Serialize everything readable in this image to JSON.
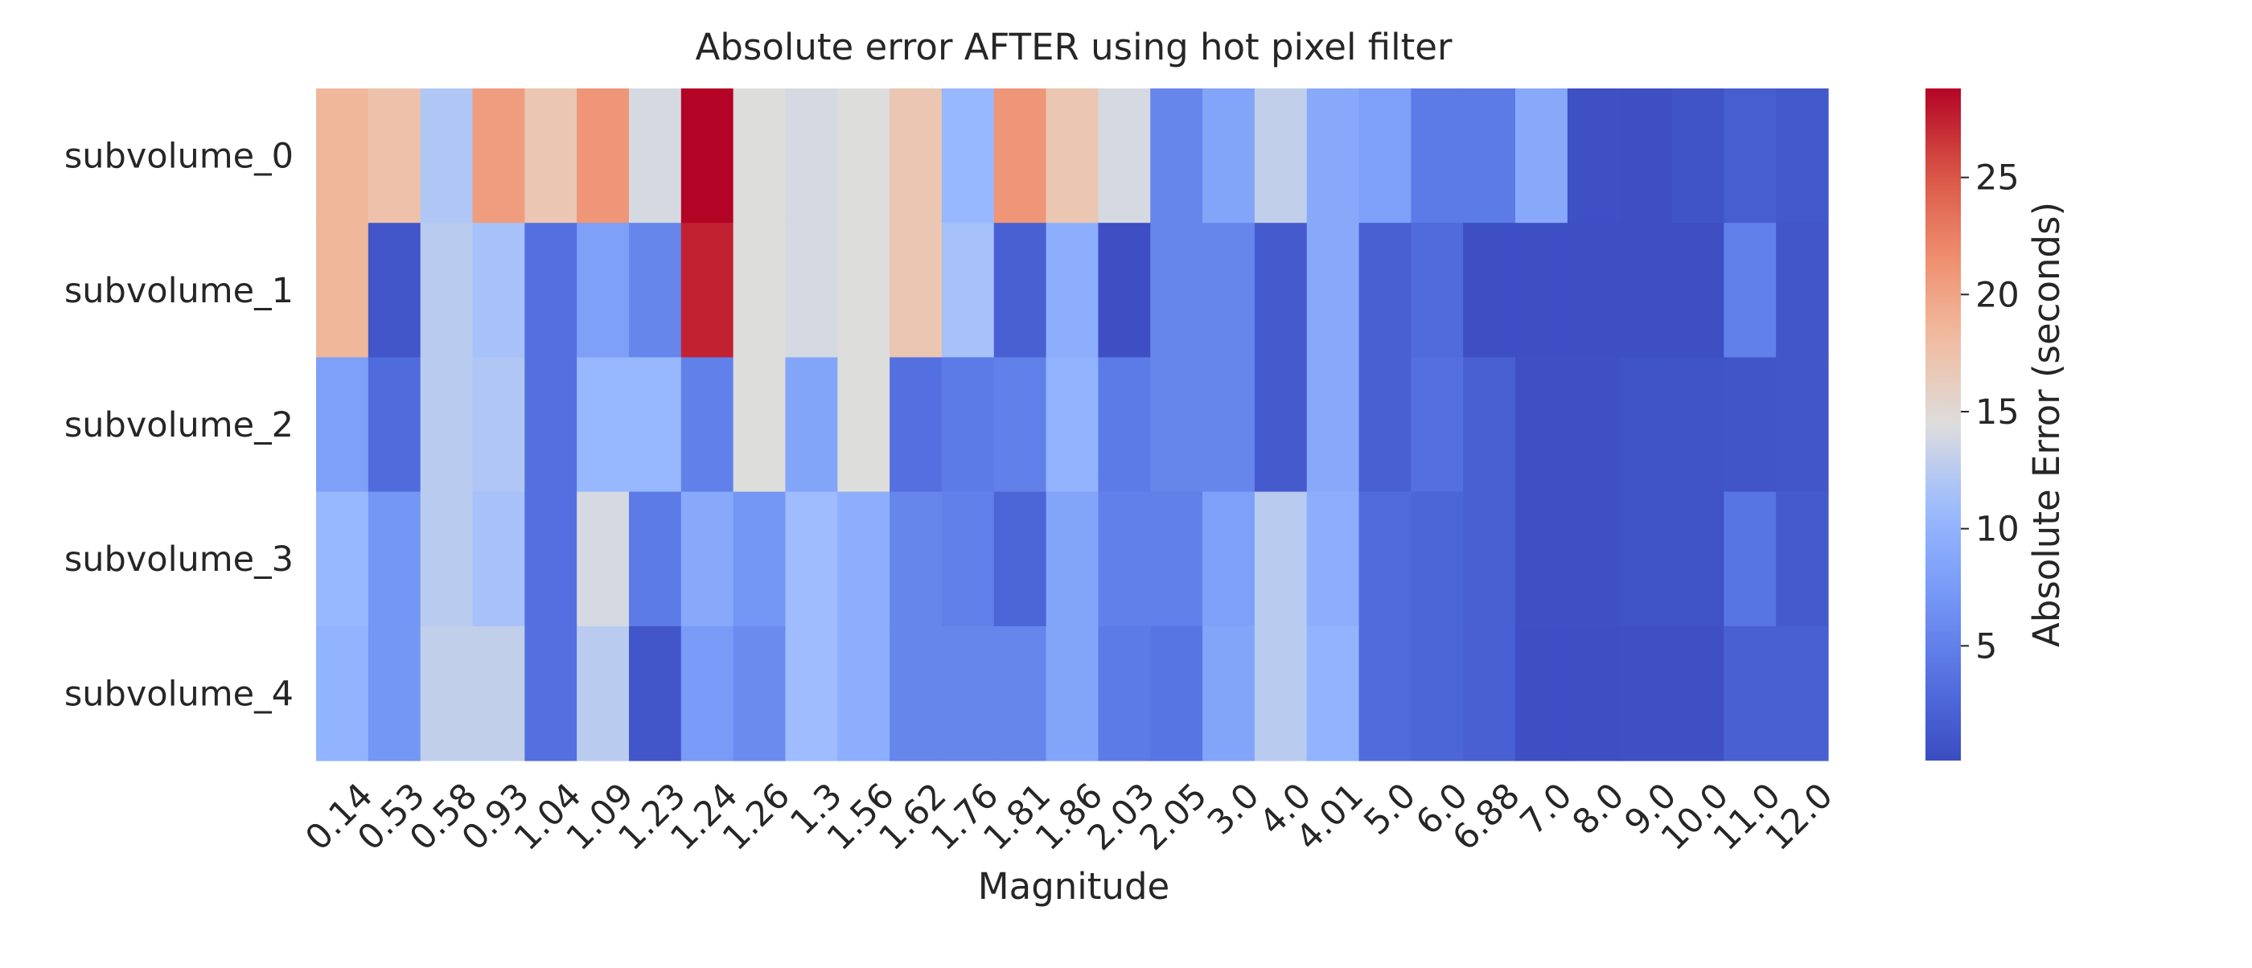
{
  "chart_data": {
    "type": "heatmap",
    "title": "Absolute error AFTER using hot pixel filter",
    "xlabel": "Magnitude",
    "ylabel": "",
    "colorbar_label": "Absolute Error (seconds)",
    "colormap": "coolwarm",
    "color_range": [
      0.1,
      28.8
    ],
    "colorbar_ticks": [
      5,
      10,
      15,
      20,
      25
    ],
    "x": [
      "0.14",
      "0.53",
      "0.58",
      "0.93",
      "1.04",
      "1.09",
      "1.23",
      "1.24",
      "1.26",
      "1.3",
      "1.56",
      "1.62",
      "1.76",
      "1.81",
      "1.86",
      "2.03",
      "2.05",
      "3.0",
      "4.0",
      "4.01",
      "5.0",
      "6.0",
      "6.88",
      "7.0",
      "8.0",
      "9.0",
      "10.0",
      "11.0",
      "12.0"
    ],
    "y": [
      "subvolume_0",
      "subvolume_1",
      "subvolume_2",
      "subvolume_3",
      "subvolume_4"
    ],
    "values": [
      [
        18.5,
        17.5,
        12.0,
        20.5,
        17.0,
        21.0,
        14.0,
        28.8,
        14.5,
        14.0,
        14.5,
        17.0,
        10.5,
        21.0,
        17.0,
        14.0,
        5.5,
        8.5,
        13.0,
        9.0,
        8.0,
        4.5,
        4.5,
        9.0,
        0.5,
        0.4,
        0.8,
        1.8,
        1.2
      ],
      [
        18.5,
        1.0,
        12.5,
        11.5,
        3.5,
        8.0,
        5.5,
        27.5,
        14.5,
        14.0,
        14.5,
        17.0,
        11.5,
        2.0,
        9.5,
        0.4,
        5.5,
        5.5,
        1.5,
        9.0,
        2.0,
        3.0,
        0.4,
        0.4,
        0.4,
        0.4,
        0.4,
        5.0,
        1.0
      ],
      [
        8.0,
        3.0,
        12.5,
        12.0,
        3.5,
        10.5,
        10.5,
        5.0,
        14.5,
        8.5,
        14.5,
        3.5,
        4.5,
        5.0,
        10.0,
        4.5,
        5.5,
        5.5,
        1.5,
        9.0,
        2.0,
        3.5,
        2.0,
        0.5,
        0.5,
        0.7,
        0.7,
        0.9,
        1.0
      ],
      [
        10.5,
        7.0,
        12.5,
        11.5,
        3.5,
        14.0,
        4.5,
        9.0,
        7.0,
        11.0,
        9.5,
        5.5,
        5.0,
        2.5,
        8.5,
        5.0,
        5.0,
        8.0,
        12.5,
        9.5,
        3.0,
        2.5,
        2.0,
        0.5,
        0.5,
        0.7,
        0.7,
        4.0,
        1.5
      ],
      [
        10.0,
        7.0,
        13.0,
        13.0,
        3.5,
        12.5,
        1.0,
        7.5,
        6.0,
        11.0,
        9.5,
        5.5,
        5.5,
        5.5,
        8.5,
        4.5,
        4.0,
        8.5,
        12.5,
        10.0,
        3.0,
        2.5,
        2.0,
        0.4,
        0.4,
        0.5,
        0.5,
        2.0,
        2.0
      ]
    ]
  }
}
